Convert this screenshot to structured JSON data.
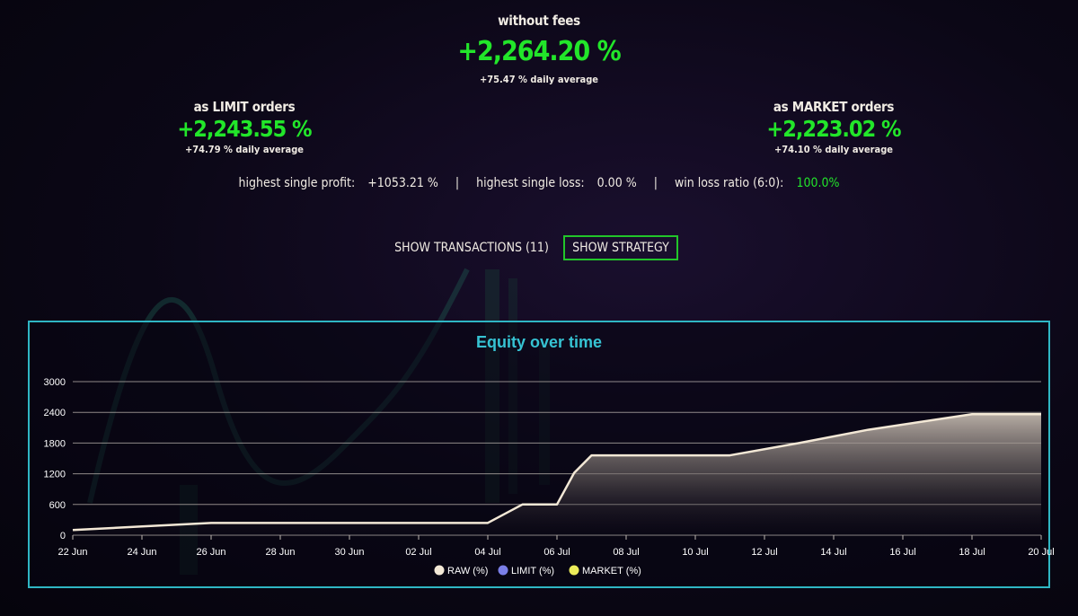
{
  "summary": {
    "without_fees_label": "without fees",
    "without_fees_value": "+2,264.20 %",
    "without_fees_daily": "+75.47 % daily average",
    "limit_label": "as LIMIT orders",
    "limit_value": "+2,243.55 %",
    "limit_daily": "+74.79 % daily average",
    "market_label": "as MARKET orders",
    "market_value": "+2,223.02 %",
    "market_daily": "+74.10 % daily average"
  },
  "stats": {
    "highest_profit_label": "highest single profit:",
    "highest_profit_value": "+1053.21 %",
    "highest_loss_label": "highest single loss:",
    "highest_loss_value": "0.00 %",
    "win_loss_label": "win loss ratio (6:0):",
    "win_loss_value": "100.0%",
    "separator": "|"
  },
  "buttons": {
    "show_transactions": "SHOW TRANSACTIONS (11)",
    "show_strategy": "SHOW STRATEGY"
  },
  "colors": {
    "accent_green": "#22e62a",
    "chart_border": "#2fb6c4",
    "chart_title": "#36c3d3",
    "raw_line": "#f3e8d6",
    "limit_legend": "#7b7fe8",
    "market_legend": "#ecec5a"
  },
  "chart_data": {
    "type": "area",
    "title": "Equity over time",
    "xlabel": "",
    "ylabel": "",
    "ylim": [
      0,
      3000
    ],
    "yticks": [
      0,
      600,
      1200,
      1800,
      2400,
      3000
    ],
    "xticks": [
      "22 Jun",
      "24 Jun",
      "26 Jun",
      "28 Jun",
      "30 Jun",
      "02 Jul",
      "04 Jul",
      "06 Jul",
      "08 Jul",
      "10 Jul",
      "12 Jul",
      "14 Jul",
      "16 Jul",
      "18 Jul",
      "20 Jul"
    ],
    "grid": true,
    "legend_position": "bottom",
    "series": [
      {
        "name": "RAW (%)",
        "x": [
          "2023-06-22",
          "2023-06-24",
          "2023-06-26",
          "2023-06-28",
          "2023-06-30",
          "2023-07-02",
          "2023-07-03",
          "2023-07-04",
          "2023-07-05",
          "2023-07-06",
          "2023-07-06 12:00",
          "2023-07-07",
          "2023-07-08",
          "2023-07-11",
          "2023-07-13",
          "2023-07-15",
          "2023-07-18",
          "2023-07-20"
        ],
        "values": [
          100,
          170,
          240,
          240,
          240,
          240,
          240,
          240,
          600,
          600,
          1220,
          1560,
          1560,
          1560,
          1800,
          2060,
          2364,
          2364
        ]
      },
      {
        "name": "LIMIT (%)",
        "values": []
      },
      {
        "name": "MARKET (%)",
        "values": []
      }
    ]
  }
}
